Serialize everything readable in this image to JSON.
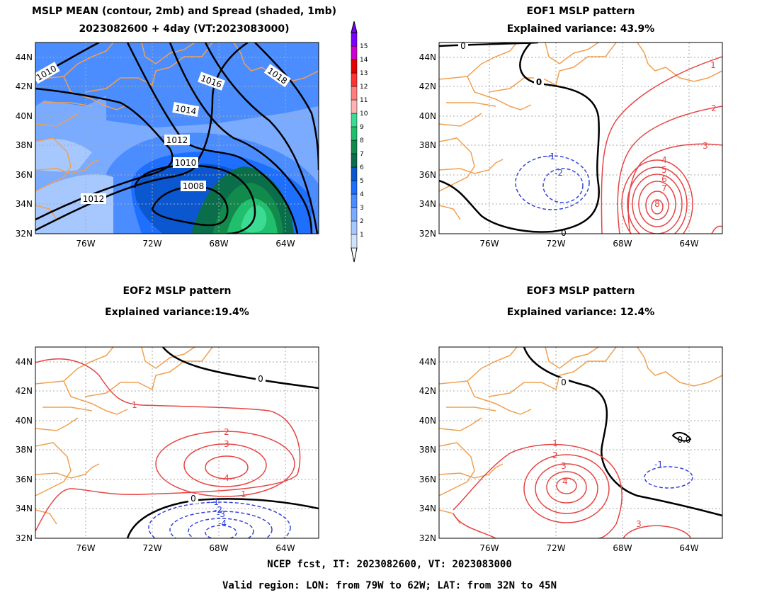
{
  "panels": {
    "mean": {
      "title_line1": "MSLP MEAN (contour, 2mb) and Spread (shaded, 1mb)",
      "title_line2": "2023082600 + 4day (VT:2023083000)",
      "contour_labels": [
        "1010",
        "1016",
        "1018",
        "1014",
        "1012",
        "1010",
        "1008",
        "1012"
      ],
      "colorbar_labels": [
        "1",
        "2",
        "3",
        "4",
        "5",
        "6",
        "7",
        "8",
        "9",
        "10",
        "11",
        "12",
        "13",
        "14",
        "15"
      ],
      "colorbar_colors": [
        "#cfe2ff",
        "#a6c8ff",
        "#7aabff",
        "#4b8dff",
        "#1f6fff",
        "#0b57d0",
        "#0a6e4a",
        "#128a4c",
        "#1fbf6b",
        "#3cdb93",
        "#ffb3b3",
        "#ff7f7f",
        "#ff3333",
        "#e60000",
        "#cc00cc",
        "#7a00ff"
      ]
    },
    "eof1": {
      "title_line1": "EOF1 MSLP pattern",
      "title_line2": "Explained variance: 43.9%",
      "contour_labels": [
        "0",
        "0",
        "1",
        "2",
        "3",
        "4",
        "5",
        "6",
        "7",
        "8",
        "-1",
        "-2",
        "0"
      ]
    },
    "eof2": {
      "title_line1": "EOF2 MSLP pattern",
      "title_line2": "Explained variance:19.4%",
      "contour_labels": [
        "0",
        "1",
        "2",
        "3",
        "4",
        "1",
        "0",
        "-1",
        "-2",
        "-3",
        "-4"
      ]
    },
    "eof3": {
      "title_line1": "EOF3 MSLP pattern",
      "title_line2": "Explained variance: 12.4%",
      "contour_labels": [
        "0",
        "1",
        "2",
        "3",
        "4",
        "3",
        "-1",
        "0.0"
      ]
    }
  },
  "axes": {
    "lat_labels": [
      "44N",
      "42N",
      "40N",
      "38N",
      "36N",
      "34N",
      "32N"
    ],
    "lon_labels": [
      "76W",
      "72W",
      "68W",
      "64W"
    ]
  },
  "colors": {
    "coastline": "#f0a050",
    "positive_contour": "#e64545",
    "negative_contour": "#3344dd",
    "zero_contour": "#000000",
    "grid": "#aaaaaa"
  },
  "footer": {
    "line1": "NCEP fcst, IT: 2023082600, VT: 2023083000",
    "line2": "Valid region: LON: from 79W to 62W; LAT: from 32N to 45N"
  }
}
